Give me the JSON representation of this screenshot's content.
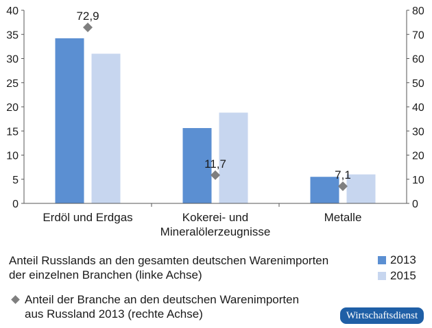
{
  "chart_data": {
    "type": "bar",
    "categories": [
      {
        "line1": "Erdöl und Erdgas",
        "line2": ""
      },
      {
        "line1": "Kokerei- und",
        "line2": "Mineralölerzeugnisse"
      },
      {
        "line1": "Metalle",
        "line2": ""
      }
    ],
    "series": [
      {
        "name": "2013",
        "axis": "left",
        "color": "#5b8fd2",
        "values": [
          34.2,
          15.6,
          5.5
        ]
      },
      {
        "name": "2015",
        "axis": "left",
        "color": "#c7d6ef",
        "values": [
          31.0,
          18.8,
          6.0
        ]
      }
    ],
    "markers": {
      "name": "Anteil der Branche an den deutschen Warenimporten aus Russland 2013 (rechte Achse)",
      "axis": "right",
      "color": "#7f7f7f",
      "values": [
        72.9,
        11.7,
        7.1
      ],
      "labels": [
        "72,9",
        "11,7",
        "7,1"
      ]
    },
    "left_axis": {
      "min": 0,
      "max": 40,
      "ticks": [
        0,
        5,
        10,
        15,
        20,
        25,
        30,
        35,
        40
      ]
    },
    "right_axis": {
      "min": 0,
      "max": 80,
      "ticks": [
        0,
        10,
        20,
        30,
        40,
        50,
        60,
        70,
        80
      ]
    }
  },
  "legend": {
    "bars_line1": "Anteil Russlands an den gesamten deutschen Warenimporten",
    "bars_line2": "der einzelnen Branchen (linke Achse)",
    "year_2013": "2013",
    "year_2015": "2015",
    "marker_line1": "Anteil der Branche an den deutschen Warenimporten",
    "marker_line2": "aus Russland 2013 (rechte Achse)"
  },
  "source_badge": "Wirtschaftsdienst",
  "colors": {
    "bar_2013": "#5b8fd2",
    "bar_2015": "#c7d6ef",
    "marker": "#7f7f7f",
    "badge": "#1f5fa6"
  }
}
